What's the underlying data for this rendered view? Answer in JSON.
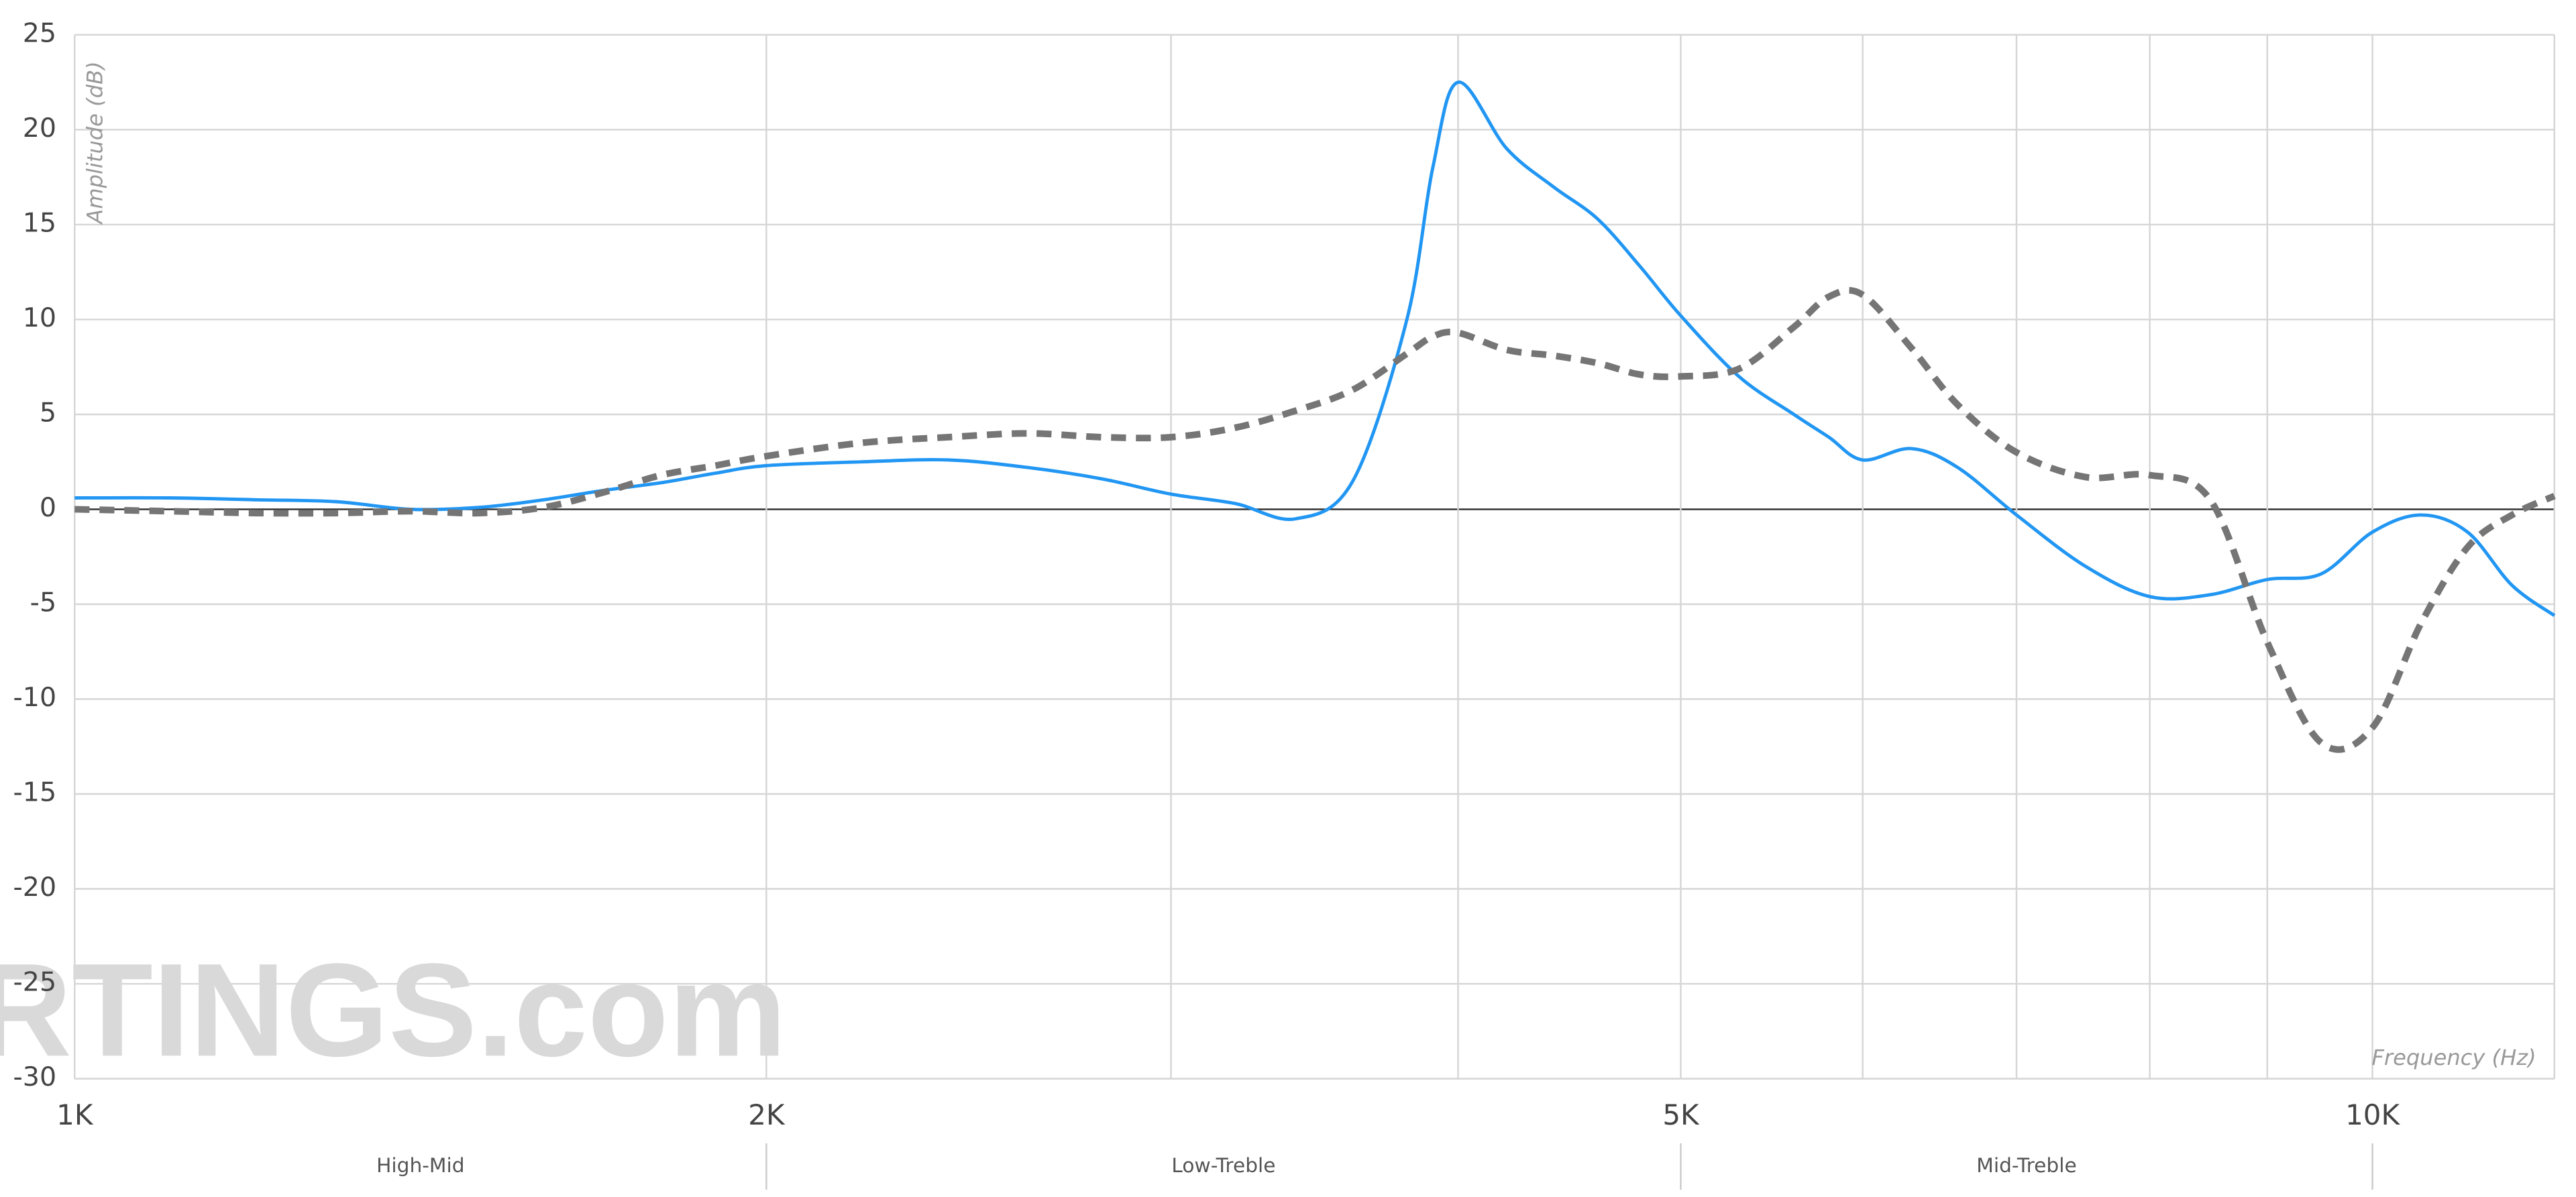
{
  "chart_data": {
    "type": "line",
    "y_label": "Amplitude (dB)",
    "x_label": "Frequency (Hz)",
    "watermark": "RTINGS.com",
    "log_x": true,
    "grid": true,
    "xlim": [
      1000,
      12000
    ],
    "ylim": [
      -30,
      25
    ],
    "yticks": [
      -30,
      -25,
      -20,
      -15,
      -10,
      -5,
      0,
      5,
      10,
      15,
      20,
      25
    ],
    "xticks": [
      {
        "value": 1000,
        "label": "1K"
      },
      {
        "value": 2000,
        "label": "2K"
      },
      {
        "value": 5000,
        "label": "5K"
      },
      {
        "value": 10000,
        "label": "10K"
      }
    ],
    "xgrid": [
      3000,
      4000,
      6000,
      7000,
      8000,
      9000
    ],
    "bands": [
      {
        "label": "High-Mid",
        "from": 1000,
        "to": 2000
      },
      {
        "label": "Low-Treble",
        "from": 2000,
        "to": 5000
      },
      {
        "label": "Mid-Treble",
        "from": 5000,
        "to": 10000
      }
    ],
    "x": [
      1000,
      1100,
      1200,
      1300,
      1400,
      1500,
      1600,
      1700,
      1800,
      1900,
      2000,
      2200,
      2400,
      2600,
      2800,
      3000,
      3200,
      3400,
      3600,
      3800,
      3900,
      4000,
      4200,
      4400,
      4600,
      4800,
      5000,
      5300,
      5600,
      5800,
      6000,
      6300,
      6600,
      7000,
      7500,
      8000,
      8500,
      9000,
      9500,
      10000,
      10500,
      11000,
      11500,
      12000
    ],
    "series": [
      {
        "color": "#2196f3",
        "dashed": false,
        "values": [
          0.6,
          0.6,
          0.5,
          0.4,
          0.0,
          0.1,
          0.5,
          1.0,
          1.4,
          1.9,
          2.3,
          2.5,
          2.6,
          2.2,
          1.6,
          0.8,
          0.3,
          -0.5,
          1.5,
          10,
          18,
          22.5,
          19,
          17,
          15.3,
          12.8,
          10.2,
          7,
          5,
          3.8,
          2.6,
          3.2,
          2.2,
          -0.3,
          -3,
          -4.6,
          -4.5,
          -3.7,
          -3.4,
          -1.2,
          -0.3,
          -1.2,
          -4,
          -5.6
        ]
      },
      {
        "color": "#757575",
        "dashed": true,
        "values": [
          0,
          -0.1,
          -0.2,
          -0.2,
          -0.1,
          -0.2,
          0.1,
          0.9,
          1.8,
          2.3,
          2.8,
          3.5,
          3.8,
          4.0,
          3.8,
          3.8,
          4.3,
          5.2,
          6.3,
          8.2,
          9.1,
          9.3,
          8.4,
          8.1,
          7.7,
          7.1,
          7.0,
          7.4,
          9.6,
          11.2,
          11.3,
          8.5,
          5.5,
          3.0,
          1.7,
          1.8,
          0.5,
          -7,
          -12.3,
          -11.5,
          -6,
          -2,
          -0.3,
          0.7
        ]
      }
    ]
  }
}
